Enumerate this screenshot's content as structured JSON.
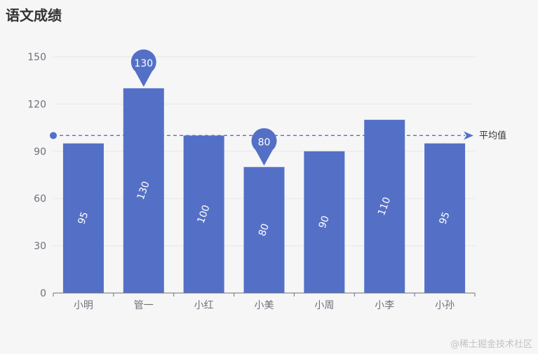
{
  "chart_data": {
    "type": "bar",
    "title": "语文成绩",
    "categories": [
      "小明",
      "管一",
      "小红",
      "小美",
      "小周",
      "小李",
      "小孙"
    ],
    "values": [
      95,
      130,
      100,
      80,
      90,
      110,
      95
    ],
    "ylim": [
      0,
      150
    ],
    "yticks": [
      0,
      30,
      60,
      90,
      120,
      150
    ],
    "grid": true,
    "bar_color": "#5470c6",
    "average_line": {
      "label": "平均值",
      "value": 100,
      "color": "#5470c6"
    },
    "mark_points": [
      {
        "category": "管一",
        "value": 130,
        "label": "130"
      },
      {
        "category": "小美",
        "value": 80,
        "label": "80"
      }
    ]
  },
  "watermark": "@稀土掘金技术社区"
}
